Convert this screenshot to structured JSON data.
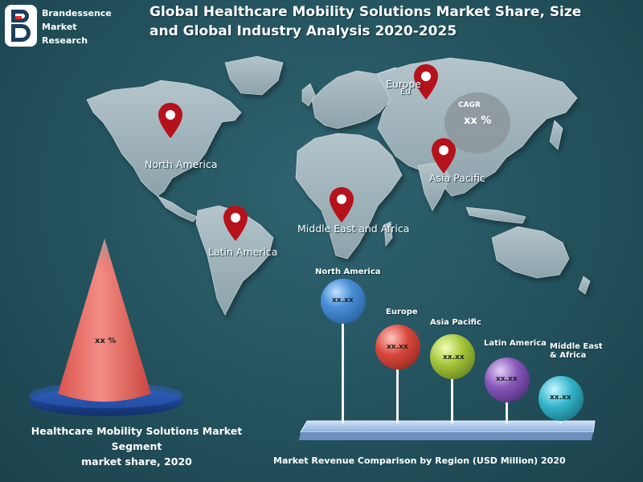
{
  "brand": {
    "line1": "Brandessence",
    "line2": "Market",
    "line3": "Research"
  },
  "title": {
    "line1": "Global Healthcare Mobility Solutions Market Share, Size",
    "line2": "and Global Industry Analysis 2020-2025"
  },
  "map_labels": {
    "europe": "Europe",
    "europe_sub": "Eu",
    "north_america": "North America",
    "asia_pacific": "Asia Pacific",
    "middle_east_africa": "Middle East and Africa",
    "latin_america": "Latin America"
  },
  "cagr": {
    "label": "CAGR",
    "value": "xx %"
  },
  "segment_chart": {
    "value": "xx %",
    "caption_line1": "Healthcare Mobility Solutions  Market Segment",
    "caption_line2": "market share, 2020"
  },
  "revenue": {
    "caption": "Market Revenue Comparison by Region (USD Million) 2020",
    "regions": [
      {
        "name": "North America",
        "value": "xx.xx",
        "color": "#3a7fc4"
      },
      {
        "name": "Europe",
        "value": "xx.xx",
        "color": "#d8473c"
      },
      {
        "name": "Asia Pacific",
        "value": "xx.xx",
        "color": "#9cc23a"
      },
      {
        "name": "Latin America",
        "value": "xx.xx",
        "color": "#7a4fa8"
      },
      {
        "name_line1": "Middle East",
        "name_line2": "& Africa",
        "value": "xx.xx",
        "color": "#2fb3c9"
      }
    ]
  },
  "colors": {
    "background": "#23525d",
    "land": "#9fb3bb",
    "pin": "#b5121b",
    "cone": "#e8675e",
    "disc": "#1b3f8a"
  }
}
